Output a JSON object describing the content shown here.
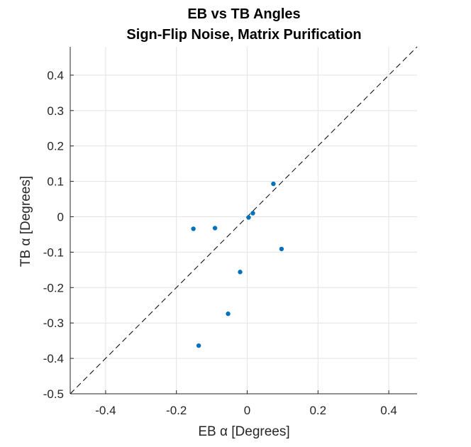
{
  "chart_data": {
    "type": "scatter",
    "title": [
      "EB vs TB Angles",
      "Sign-Flip Noise, Matrix Purification"
    ],
    "xlabel": "EB α [Degrees]",
    "ylabel": "TB α [Degrees]",
    "xlim": [
      -0.5,
      0.48
    ],
    "ylim": [
      -0.5,
      0.48
    ],
    "xticks": [
      -0.4,
      -0.2,
      0,
      0.2,
      0.4
    ],
    "xtick_labels": [
      "-0.4",
      "-0.2",
      "0",
      "0.2",
      "0.4"
    ],
    "yticks": [
      -0.5,
      -0.4,
      -0.3,
      -0.2,
      -0.1,
      0,
      0.1,
      0.2,
      0.3,
      0.4
    ],
    "ytick_labels": [
      "-0.5",
      "-0.4",
      "-0.3",
      "-0.2",
      "-0.1",
      "0",
      "0.1",
      "0.2",
      "0.3",
      "0.4"
    ],
    "grid": true,
    "reference_line": "y = x (dashed, black)",
    "marker_color": "#0072BD",
    "points": [
      {
        "x": 0.074,
        "y": 0.093
      },
      {
        "x": 0.016,
        "y": 0.01
      },
      {
        "x": 0.004,
        "y": -0.002
      },
      {
        "x": -0.152,
        "y": -0.034
      },
      {
        "x": -0.091,
        "y": -0.032
      },
      {
        "x": 0.097,
        "y": -0.091
      },
      {
        "x": -0.02,
        "y": -0.156
      },
      {
        "x": -0.054,
        "y": -0.274
      },
      {
        "x": -0.137,
        "y": -0.364
      }
    ]
  }
}
